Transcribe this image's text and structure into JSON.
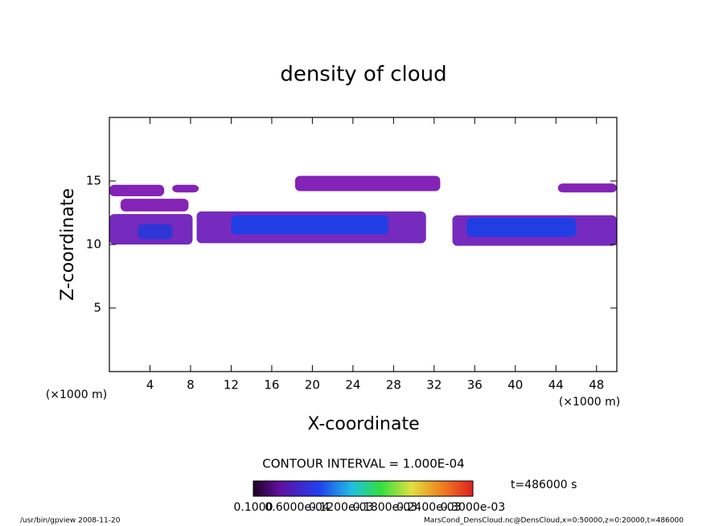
{
  "chart_data": {
    "type": "contour",
    "title": "density of cloud",
    "x_label": "X-coordinate",
    "y_label": "Z-coordinate",
    "x_unit_left": "(×1000 m)",
    "x_unit_right": "(×1000 m)",
    "xlim": [
      0,
      50
    ],
    "ylim": [
      0,
      20
    ],
    "xticks": [
      4,
      8,
      12,
      16,
      20,
      24,
      28,
      32,
      36,
      40,
      44,
      48
    ],
    "yticks": [
      5,
      10,
      15
    ],
    "regions": [
      {
        "x": [
          0,
          5.4
        ],
        "z": [
          13.8,
          14.7
        ],
        "color": "#7a10b0"
      },
      {
        "x": [
          6.2,
          8.8
        ],
        "z": [
          14.1,
          14.7
        ],
        "color": "#7a10b0"
      },
      {
        "x": [
          18.3,
          32.6
        ],
        "z": [
          14.2,
          15.4
        ],
        "color": "#7a10b0"
      },
      {
        "x": [
          44.2,
          50
        ],
        "z": [
          14.1,
          14.8
        ],
        "color": "#7a10b0"
      },
      {
        "x": [
          1.1,
          7.8
        ],
        "z": [
          12.6,
          13.6
        ],
        "color": "#7a10b0"
      },
      {
        "x": [
          0,
          8.2
        ],
        "z": [
          10,
          12.4
        ],
        "color": "#6a18b8"
      },
      {
        "x": [
          2.8,
          6.2
        ],
        "z": [
          10.4,
          11.6
        ],
        "color": "#2838d8"
      },
      {
        "x": [
          8.6,
          31.2
        ],
        "z": [
          10.1,
          12.6
        ],
        "color": "#6a18b8"
      },
      {
        "x": [
          12,
          27.5
        ],
        "z": [
          10.8,
          12.3
        ],
        "color": "#1a40e8"
      },
      {
        "x": [
          33.8,
          50
        ],
        "z": [
          9.9,
          12.3
        ],
        "color": "#6a18b8"
      },
      {
        "x": [
          35.2,
          46
        ],
        "z": [
          10.6,
          12.1
        ],
        "color": "#1a40e8"
      }
    ],
    "contour_interval": "CONTOUR INTERVAL = 1.000E-04",
    "time_label": "t=486000 s",
    "colorbar_labels": [
      "0.1000",
      "0.6000e-04",
      "0.1200e-03",
      "0.1800e-03",
      "0.2400e-03",
      "0.3000e-03"
    ],
    "footer_left": "/usr/bin/gpview   2008-11-20",
    "footer_right": "MarsCond_DensCloud.nc@DensCloud,x=0:50000,z=0:20000,t=486000"
  }
}
